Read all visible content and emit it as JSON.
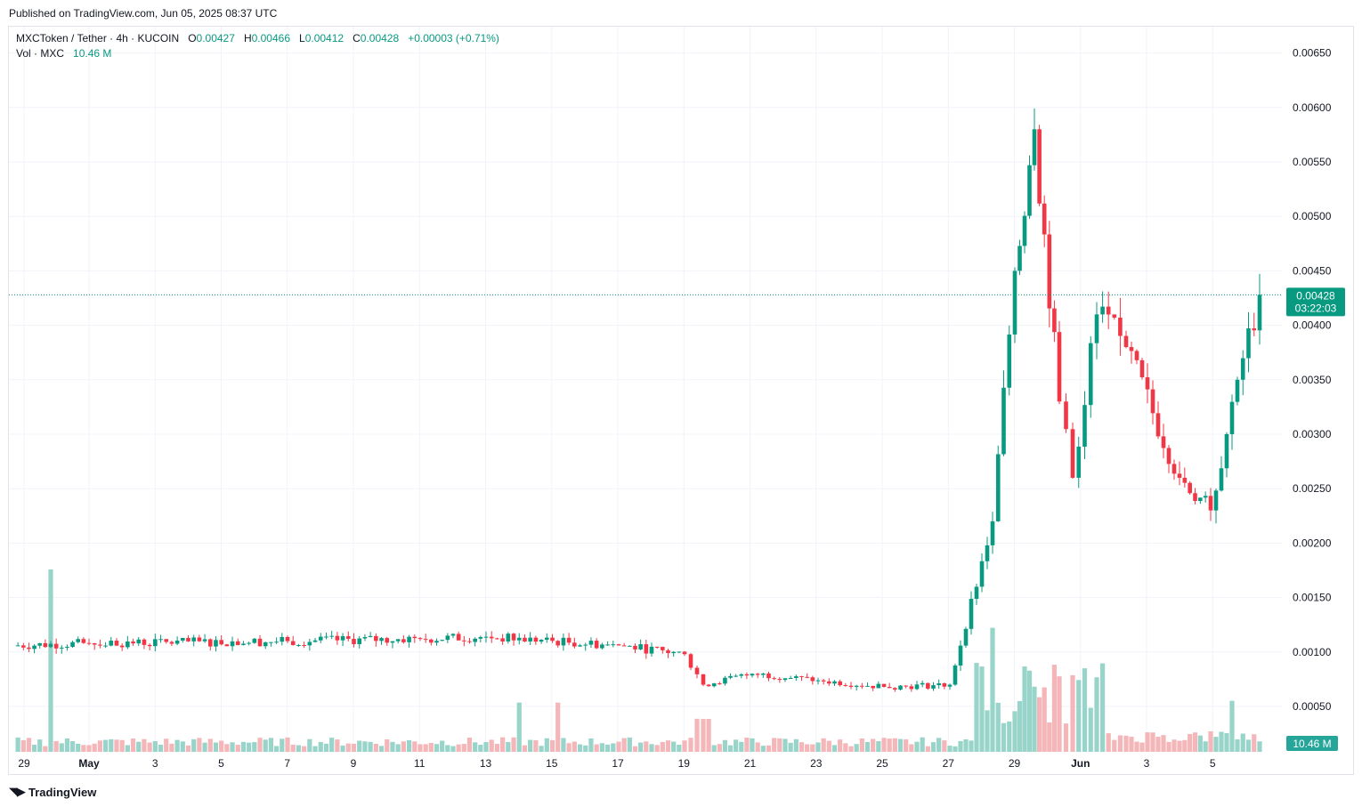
{
  "header": {
    "published": "Published on TradingView.com, Jun 05, 2025 08:37 UTC"
  },
  "legend": {
    "symbol": "MXCToken / Tether · 4h · KUCOIN",
    "o_label": "O",
    "o": "0.00427",
    "h_label": "H",
    "h": "0.00466",
    "l_label": "L",
    "l": "0.00412",
    "c_label": "C",
    "c": "0.00428",
    "change": "+0.00003 (+0.71%)",
    "vol_label": "Vol · MXC",
    "vol": "10.46 M"
  },
  "price_tag": {
    "price": "0.00428",
    "countdown": "03:22:03"
  },
  "volume_tag": "10.46 M",
  "footer": {
    "brand": "TradingView"
  },
  "colors": {
    "up": "#089981",
    "down": "#f23645",
    "vol_up": "#98d4c9",
    "vol_down": "#f4b6b8",
    "grid": "#f0f3fa",
    "text": "#131722"
  },
  "chart_data": {
    "type": "candlestick",
    "interval": "4h",
    "title": "MXCToken / Tether · 4h · KUCOIN",
    "y_ticks": [
      "0.00650",
      "0.00600",
      "0.00550",
      "0.00500",
      "0.00450",
      "0.00400",
      "0.00350",
      "0.00300",
      "0.00250",
      "0.00200",
      "0.00150",
      "0.00100",
      "0.00050"
    ],
    "x_ticks": [
      "29",
      "May",
      "3",
      "5",
      "7",
      "9",
      "11",
      "13",
      "15",
      "17",
      "19",
      "21",
      "23",
      "25",
      "27",
      "29",
      "Jun",
      "3",
      "5"
    ],
    "ylim": [
      0.0,
      0.0068
    ],
    "grid": true,
    "last_price": 0.00428,
    "series": [
      {
        "kind": "key_points",
        "points": [
          {
            "date": "Apr 29",
            "close": 0.00106
          },
          {
            "date": "May 1",
            "close": 0.00108
          },
          {
            "date": "May 7",
            "close": 0.0011
          },
          {
            "date": "May 11",
            "close": 0.00112
          },
          {
            "date": "May 13",
            "close": 0.00114
          },
          {
            "date": "May 17",
            "close": 0.00106
          },
          {
            "date": "May 19",
            "close": 0.00098
          },
          {
            "date": "May 20",
            "close": 0.0007
          },
          {
            "date": "May 21",
            "close": 0.0008
          },
          {
            "date": "May 23",
            "close": 0.00074
          },
          {
            "date": "May 25",
            "close": 0.00068
          },
          {
            "date": "May 27",
            "close": 0.0007
          },
          {
            "date": "May 28",
            "close": 0.0022
          },
          {
            "date": "May 29",
            "close": 0.0045
          },
          {
            "date": "May 30",
            "close": 0.0058
          },
          {
            "date": "May 31",
            "close": 0.0033
          },
          {
            "date": "Jun 1",
            "close": 0.0026
          },
          {
            "date": "Jun 1",
            "close": 0.0041
          },
          {
            "date": "Jun 2",
            "close": 0.0038
          },
          {
            "date": "Jun 3",
            "close": 0.0026
          },
          {
            "date": "Jun 4",
            "close": 0.0023
          },
          {
            "date": "Jun 4",
            "close": 0.0035
          },
          {
            "date": "Jun 5",
            "close": 0.00428
          }
        ]
      }
    ],
    "volume_series": {
      "name": "Vol · MXC",
      "last": "10.46 M",
      "peaks": [
        {
          "date": "Apr 30",
          "relative": 1.0
        },
        {
          "date": "May 14",
          "relative": 0.27
        },
        {
          "date": "May 15",
          "relative": 0.27
        },
        {
          "date": "May 28",
          "relative": 0.68
        },
        {
          "date": "May 31",
          "relative": 0.42
        },
        {
          "date": "Jun 4",
          "relative": 0.28
        }
      ]
    }
  }
}
